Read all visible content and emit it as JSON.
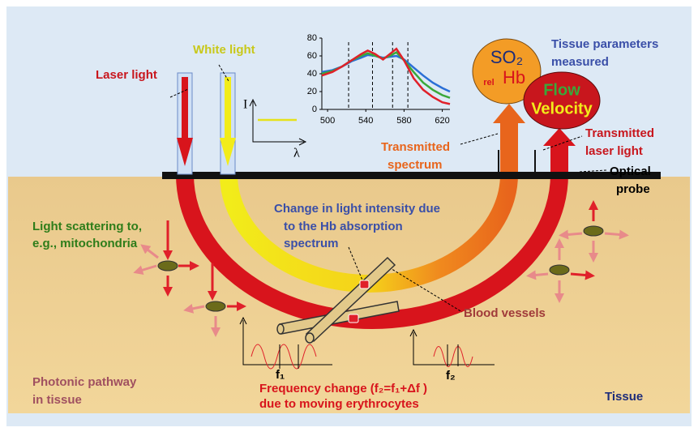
{
  "labels": {
    "laser_light": "Laser light",
    "white_light": "White light",
    "tissue_parameters": [
      "Tissue parameters",
      "measured"
    ],
    "so2": "SO₂",
    "relhb_prefix": "rel",
    "relhb": "Hb",
    "flow": "Flow",
    "velocity": "Velocity",
    "transmitted_laser": [
      "Transmitted",
      "laser light"
    ],
    "transmitted_spectrum": [
      "Transmitted",
      "spectrum"
    ],
    "optical_probe": [
      "Optical",
      "probe"
    ],
    "change_intensity": [
      "Change in light intensity due",
      "to the Hb absorption",
      "spectrum"
    ],
    "scattering": [
      "Light scattering to,",
      "e.g., mitochondria"
    ],
    "blood_vessels": "Blood vessels",
    "photonic_pathway": [
      "Photonic pathway",
      "in tissue"
    ],
    "frequency_change": [
      "Frequency change (f₂=f₁+Δf )",
      "due to moving erythrocytes"
    ],
    "tissue": "Tissue",
    "f1": "f₁",
    "f2": "f₂",
    "intensity_axis": "I",
    "wavelength_axis": "λ"
  },
  "inset_chart": {
    "type": "line",
    "xlim": [
      494,
      628
    ],
    "ylim": [
      0,
      80
    ],
    "xticks": [
      500,
      540,
      580,
      620
    ],
    "yticks": [
      0,
      20,
      40,
      60,
      80
    ],
    "dashed_lines": [
      522,
      547,
      568,
      584
    ],
    "x": [
      494,
      505,
      515,
      525,
      535,
      542,
      550,
      558,
      565,
      572,
      580,
      590,
      600,
      610,
      620,
      628
    ],
    "series": [
      {
        "color": "#2a6fd6",
        "values": [
          42,
          44,
          48,
          54,
          58,
          61,
          60,
          58,
          59,
          60,
          56,
          47,
          38,
          30,
          24,
          20
        ]
      },
      {
        "color": "#3aa83a",
        "values": [
          40,
          43,
          48,
          55,
          60,
          63,
          60,
          57,
          60,
          64,
          55,
          42,
          30,
          22,
          16,
          13
        ]
      },
      {
        "color": "#e0202a",
        "values": [
          38,
          42,
          48,
          55,
          62,
          66,
          62,
          56,
          62,
          68,
          55,
          35,
          22,
          14,
          8,
          6
        ]
      }
    ]
  }
}
